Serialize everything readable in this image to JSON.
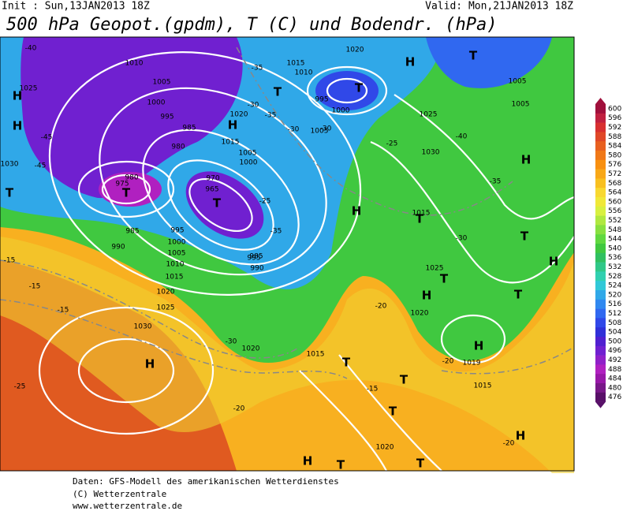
{
  "header": {
    "init": "Init : Sun,13JAN2013 18Z",
    "valid": "Valid: Mon,21JAN2013 18Z",
    "title": "500 hPa Geopot.(gpdm), T (C) und Bodendr. (hPa)"
  },
  "legend": {
    "levels": [
      600,
      596,
      592,
      588,
      584,
      580,
      576,
      572,
      568,
      564,
      560,
      556,
      552,
      548,
      544,
      540,
      536,
      532,
      528,
      524,
      520,
      516,
      512,
      508,
      504,
      500,
      496,
      492,
      488,
      484,
      480,
      476
    ],
    "colors": [
      "#a0103c",
      "#c02040",
      "#d83030",
      "#e04828",
      "#e86020",
      "#f07818",
      "#f89010",
      "#f8a818",
      "#f8c020",
      "#f8d830",
      "#f0e838",
      "#d8f040",
      "#b0e840",
      "#88e040",
      "#60d840",
      "#40c840",
      "#30c060",
      "#30c888",
      "#30d0b0",
      "#30c8d8",
      "#30a8e8",
      "#3088f0",
      "#3068f0",
      "#3048e8",
      "#3030d8",
      "#5020d0",
      "#7020d0",
      "#9020c8",
      "#b020c0",
      "#9818a8",
      "#781888",
      "#581068"
    ]
  },
  "map": {
    "labels": [
      "1010",
      "1005",
      "1000",
      "995",
      "985",
      "980",
      "975",
      "980",
      "985",
      "990",
      "995",
      "1000",
      "1005",
      "1010",
      "1015",
      "1020",
      "1025",
      "1030",
      "1025",
      "1030",
      "1020",
      "1015",
      "1005",
      "1000",
      "995",
      "990",
      "985",
      "970",
      "965",
      "1015",
      "1010",
      "1005",
      "1000",
      "995",
      "1020",
      "1025",
      "1030",
      "1005",
      "1005",
      "1015",
      "1025",
      "1020",
      "1019",
      "1015",
      "1015",
      "1020",
      "1020",
      "-40",
      "-45",
      "-45",
      "-35",
      "-30",
      "-35",
      "-30",
      "-25",
      "-15",
      "-15",
      "-15",
      "-20",
      "-15",
      "-20",
      "-20",
      "-25",
      "-30",
      "-35",
      "-30",
      "-40",
      "-35",
      "-30",
      "-25",
      "-20",
      "H",
      "T",
      "H",
      "T",
      "H",
      "T",
      "T",
      "T",
      "H",
      "T",
      "H",
      "T",
      "T",
      "H",
      "H",
      "T",
      "T",
      "H",
      "H",
      "T",
      "T",
      "T",
      "H",
      "T",
      "T",
      "H",
      "H"
    ]
  },
  "footer": {
    "lines": [
      "Daten: GFS-Modell des amerikanischen Wetterdienstes",
      "(C) Wetterzentrale",
      "www.wetterzentrale.de"
    ]
  }
}
